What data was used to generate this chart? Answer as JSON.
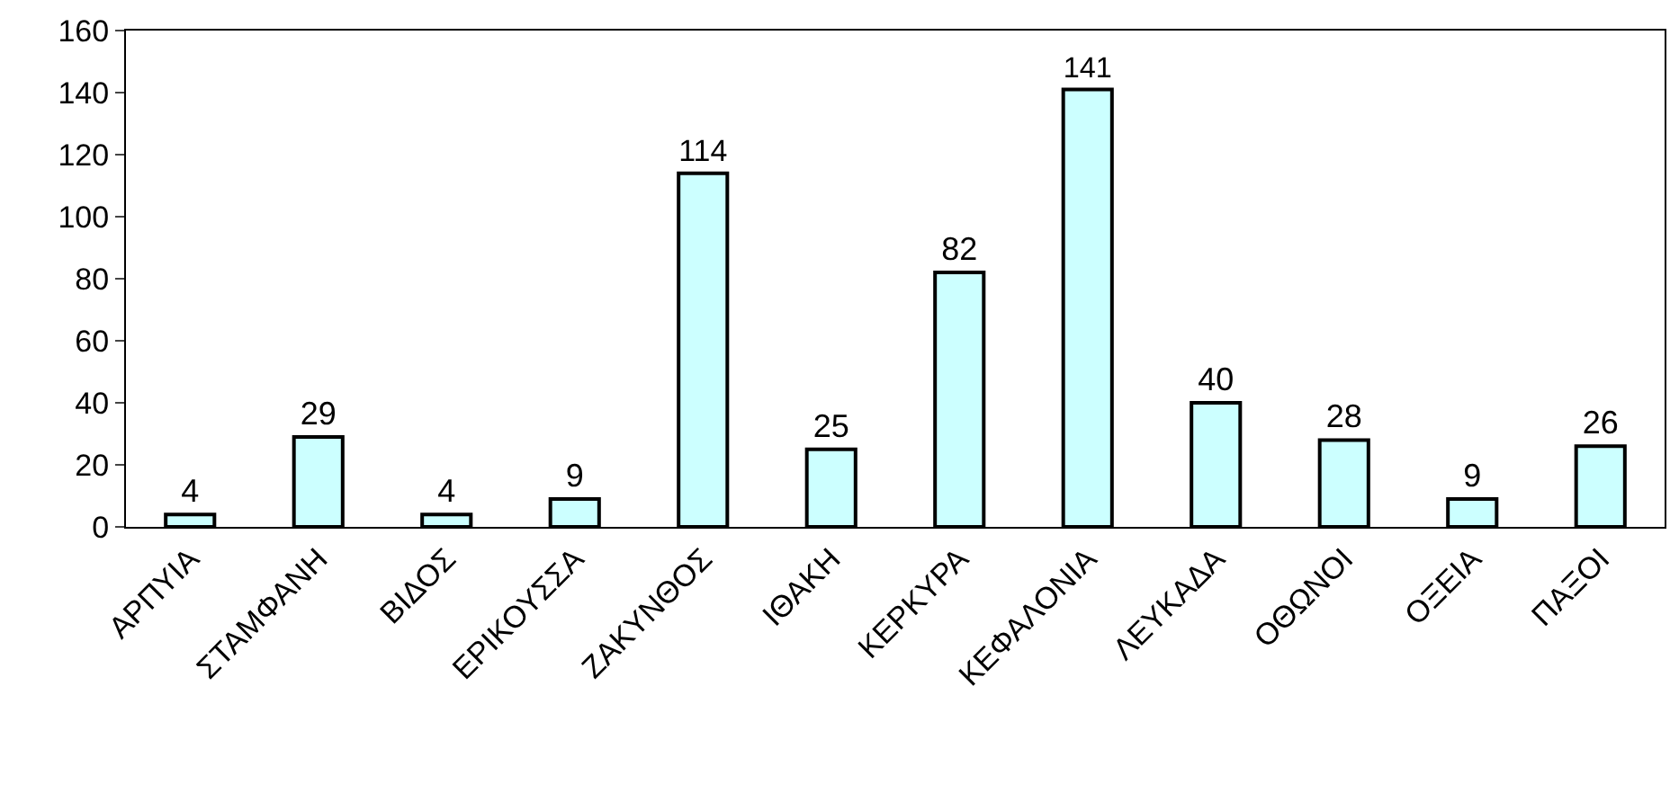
{
  "chart_data": {
    "type": "bar",
    "categories": [
      "ΑΡΠΥΙΑ",
      "ΣΤΑΜΦΑΝΗ",
      "ΒΙΔΟΣ",
      "ΕΡΙΚΟΥΣΣΑ",
      "ΖΑΚΥΝΘΟΣ",
      "ΙΘΑΚΗ",
      "ΚΕΡΚΥΡΑ",
      "ΚΕΦΑΛΟΝΙΑ",
      "ΛΕΥΚΑΔΑ",
      "ΟΘΩΝΟΙ",
      "ΟΞΕΙΑ",
      "ΠΑΞΟΙ"
    ],
    "values": [
      4,
      29,
      4,
      9,
      114,
      25,
      82,
      141,
      40,
      28,
      9,
      26
    ],
    "color": "#ccffff",
    "ylim": [
      0,
      160
    ],
    "yticks": [
      0,
      20,
      40,
      60,
      80,
      100,
      120,
      140,
      160
    ],
    "data_labels": true
  }
}
